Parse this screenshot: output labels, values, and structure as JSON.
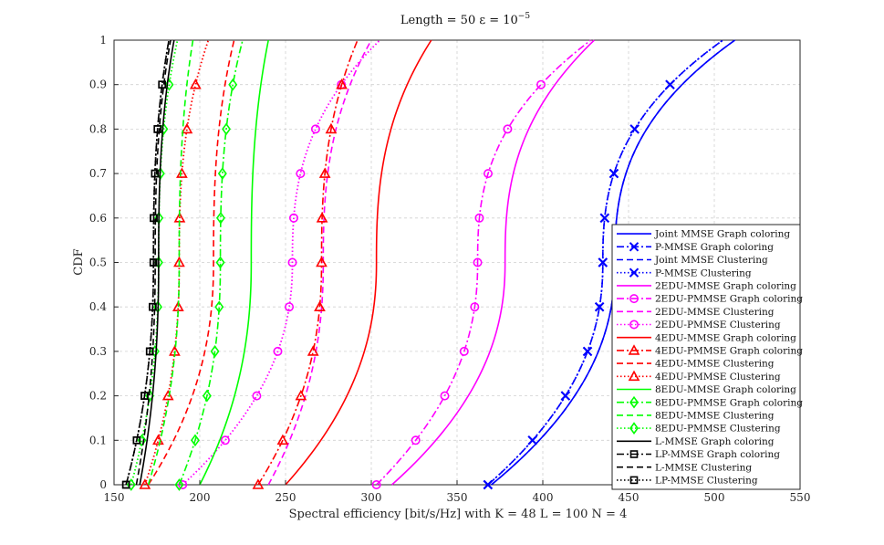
{
  "chart_data": {
    "type": "line",
    "title": "Length = 50 ε = 10",
    "title_exponent": "−5",
    "xlabel": "Spectral efficiency [bit/s/Hz] with K = 48 L = 100 N = 4",
    "ylabel": "CDF",
    "xlim": [
      150,
      550
    ],
    "ylim": [
      0,
      1
    ],
    "xticks": [
      "150",
      "200",
      "250",
      "300",
      "350",
      "400",
      "450",
      "500",
      "550"
    ],
    "yticks": [
      "0",
      "0.1",
      "0.2",
      "0.3",
      "0.4",
      "0.5",
      "0.6",
      "0.7",
      "0.8",
      "0.9",
      "1"
    ],
    "grid": true,
    "legend_position": "lower-right",
    "series": [
      {
        "name": "Joint MMSE Graph coloring",
        "color": "#0000ff",
        "style": "solid",
        "marker": "none",
        "min": 370,
        "median": 442,
        "max": 512
      },
      {
        "name": "P-MMSE Graph coloring",
        "color": "#0000ff",
        "style": "dashdot",
        "marker": "x",
        "min": 368,
        "median": 435,
        "max": 505
      },
      {
        "name": "Joint MMSE Clustering",
        "color": "#0000ff",
        "style": "dashed",
        "marker": "none",
        "min": 370,
        "median": 442,
        "max": 512
      },
      {
        "name": "P-MMSE Clustering",
        "color": "#0000ff",
        "style": "dotted",
        "marker": "x",
        "min": 368,
        "median": 435,
        "max": 505
      },
      {
        "name": "2EDU-MMSE Graph coloring",
        "color": "#ff00ff",
        "style": "solid",
        "marker": "none",
        "min": 312,
        "median": 378,
        "max": 430
      },
      {
        "name": "2EDU-PMMSE Graph coloring",
        "color": "#ff00ff",
        "style": "dashdot",
        "marker": "circle",
        "min": 303,
        "median": 362,
        "max": 428
      },
      {
        "name": "2EDU-MMSE Clustering",
        "color": "#ff00ff",
        "style": "dashed",
        "marker": "none",
        "min": 240,
        "median": 272,
        "max": 300
      },
      {
        "name": "2EDU-PMMSE Clustering",
        "color": "#ff00ff",
        "style": "dotted",
        "marker": "circle",
        "min": 190,
        "median": 254,
        "max": 305
      },
      {
        "name": "4EDU-MMSE Graph coloring",
        "color": "#ff0000",
        "style": "solid",
        "marker": "none",
        "min": 250,
        "median": 303,
        "max": 335
      },
      {
        "name": "4EDU-PMMSE Graph coloring",
        "color": "#ff0000",
        "style": "dashdot",
        "marker": "triangle",
        "min": 234,
        "median": 271,
        "max": 292
      },
      {
        "name": "4EDU-MMSE Clustering",
        "color": "#ff0000",
        "style": "dashed",
        "marker": "none",
        "min": 170,
        "median": 208,
        "max": 220
      },
      {
        "name": "4EDU-PMMSE Clustering",
        "color": "#ff0000",
        "style": "dotted",
        "marker": "triangle",
        "min": 168,
        "median": 188,
        "max": 205
      },
      {
        "name": "8EDU-MMSE Graph coloring",
        "color": "#00ff00",
        "style": "solid",
        "marker": "none",
        "min": 200,
        "median": 230,
        "max": 240
      },
      {
        "name": "8EDU-PMMSE Graph coloring",
        "color": "#00ff00",
        "style": "dashdot",
        "marker": "diamond",
        "min": 188,
        "median": 212,
        "max": 225
      },
      {
        "name": "8EDU-MMSE Clustering",
        "color": "#00ff00",
        "style": "dashed",
        "marker": "none",
        "min": 170,
        "median": 188,
        "max": 196
      },
      {
        "name": "8EDU-PMMSE Clustering",
        "color": "#00ff00",
        "style": "dotted",
        "marker": "diamond",
        "min": 160,
        "median": 176,
        "max": 187
      },
      {
        "name": "L-MMSE Graph coloring",
        "color": "#000000",
        "style": "solid",
        "marker": "none",
        "min": 165,
        "median": 176,
        "max": 185
      },
      {
        "name": "LP-MMSE Graph coloring",
        "color": "#000000",
        "style": "dashdot",
        "marker": "square",
        "min": 157,
        "median": 173,
        "max": 182
      },
      {
        "name": "L-MMSE Clustering",
        "color": "#000000",
        "style": "dashed",
        "marker": "none",
        "min": 163,
        "median": 174,
        "max": 183
      },
      {
        "name": "LP-MMSE Clustering",
        "color": "#000000",
        "style": "dotted",
        "marker": "square",
        "min": 157,
        "median": 173,
        "max": 182
      }
    ]
  }
}
